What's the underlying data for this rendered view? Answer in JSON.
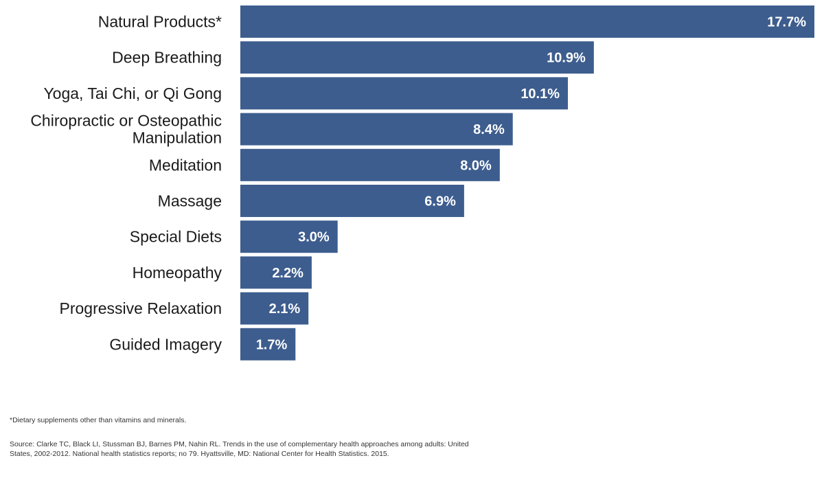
{
  "chart_data": {
    "type": "bar",
    "orientation": "horizontal",
    "title": "",
    "xlabel": "",
    "ylabel": "",
    "xlim": [
      0,
      17.7
    ],
    "grid": false,
    "legend": "none",
    "bar_color": "#3d5d8e",
    "categories": [
      [
        "Natural Products*"
      ],
      [
        "Deep Breathing"
      ],
      [
        "Yoga, Tai Chi, or Qi Gong"
      ],
      [
        "Chiropractic or Osteopathic",
        "Manipulation"
      ],
      [
        "Meditation"
      ],
      [
        "Massage"
      ],
      [
        "Special Diets"
      ],
      [
        "Homeopathy"
      ],
      [
        "Progressive Relaxation"
      ],
      [
        "Guided Imagery"
      ]
    ],
    "values": [
      17.7,
      10.9,
      10.1,
      8.4,
      8.0,
      6.9,
      3.0,
      2.2,
      2.1,
      1.7
    ],
    "data_labels": [
      "17.7%",
      "10.9%",
      "10.1%",
      "8.4%",
      "8.0%",
      "6.9%",
      "3.0%",
      "2.2%",
      "2.1%",
      "1.7%"
    ]
  },
  "footnote": "*Dietary supplements other than vitamins and minerals.",
  "source": "Source: Clarke TC, Black LI, Stussman BJ, Barnes PM, Nahin RL. Trends in the use of complementary health approaches among adults: United States, 2002-2012. National health statistics reports; no 79. Hyattsville, MD: National Center for Health Statistics. 2015."
}
